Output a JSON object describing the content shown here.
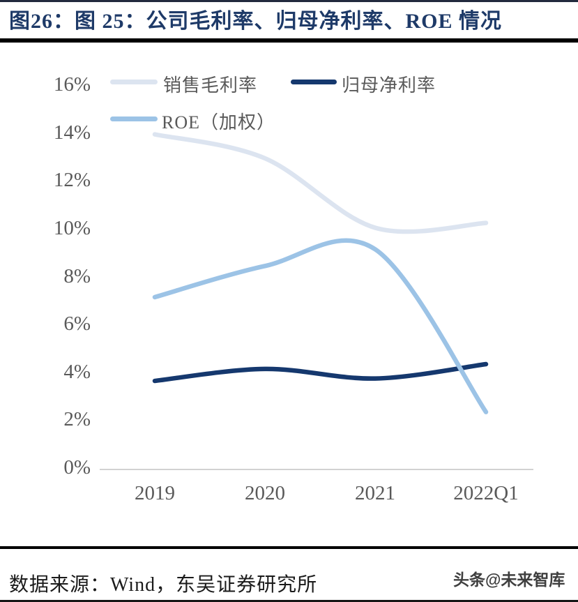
{
  "header": {
    "title": "图26：图 25：公司毛利率、归母净利率、ROE 情况"
  },
  "legend": [
    {
      "label": "销售毛利率"
    },
    {
      "label": "归母净利率"
    },
    {
      "label": "ROE（加权）"
    }
  ],
  "chart_data": {
    "type": "line",
    "smooth": true,
    "grid": false,
    "legend_position": "top-left",
    "categories": [
      "2019",
      "2020",
      "2021",
      "2022Q1"
    ],
    "series": [
      {
        "key": "gross-margin",
        "name": "销售毛利率",
        "color": "#dce4f0",
        "values": [
          14.0,
          13.0,
          10.1,
          10.3
        ]
      },
      {
        "key": "net-margin",
        "name": "归母净利率",
        "color": "#15386e",
        "values": [
          3.7,
          4.2,
          3.8,
          4.4
        ]
      },
      {
        "key": "roe-weighted",
        "name": "ROE（加权）",
        "color": "#9cc3e6",
        "values": [
          7.2,
          8.5,
          9.2,
          2.4
        ]
      }
    ],
    "xlabel": "",
    "ylabel": "",
    "ylim": [
      0,
      16
    ],
    "y_ticks": [
      16,
      14,
      12,
      10,
      8,
      6,
      4,
      2,
      0
    ],
    "y_tick_suffix": "%",
    "axis_color": "#d2d2d2",
    "tick_label_color": "#595959"
  },
  "footer": {
    "source": "数据来源：Wind，东吴证券研究所",
    "watermark": "头条@未来智库"
  }
}
